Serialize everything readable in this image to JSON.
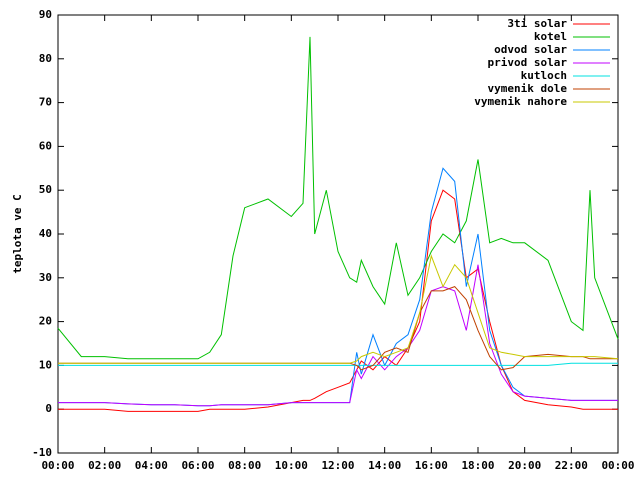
{
  "chart_data": {
    "type": "line",
    "ylabel": "teplota ve C",
    "x": [
      0,
      1,
      2,
      3,
      4,
      5,
      6,
      6.5,
      7,
      7.5,
      8,
      9,
      10,
      10.5,
      10.8,
      11,
      11.5,
      12,
      12.5,
      12.8,
      13,
      13.5,
      14,
      14.5,
      15,
      15.5,
      16,
      16.5,
      17,
      17.5,
      18,
      18.5,
      19,
      19.5,
      20,
      21,
      22,
      22.5,
      22.8,
      23,
      24
    ],
    "xlim": [
      0,
      24
    ],
    "xticks": [
      {
        "value": 0,
        "label": "00:00"
      },
      {
        "value": 2,
        "label": "02:00"
      },
      {
        "value": 4,
        "label": "04:00"
      },
      {
        "value": 6,
        "label": "06:00"
      },
      {
        "value": 8,
        "label": "08:00"
      },
      {
        "value": 10,
        "label": "10:00"
      },
      {
        "value": 12,
        "label": "12:00"
      },
      {
        "value": 14,
        "label": "14:00"
      },
      {
        "value": 16,
        "label": "16:00"
      },
      {
        "value": 18,
        "label": "18:00"
      },
      {
        "value": 20,
        "label": "20:00"
      },
      {
        "value": 22,
        "label": "22:00"
      },
      {
        "value": 24,
        "label": "00:00"
      }
    ],
    "ylim": [
      -10,
      90
    ],
    "yticks": [
      -10,
      0,
      10,
      20,
      30,
      40,
      50,
      60,
      70,
      80,
      90
    ],
    "grid": false,
    "legend": "top-right",
    "series": [
      {
        "name": "3ti solar",
        "color": "#ff0000",
        "values": [
          0,
          0,
          0,
          -0.5,
          -0.5,
          -0.5,
          -0.5,
          0,
          0,
          0,
          0,
          0.5,
          1.5,
          2,
          2,
          2.5,
          4,
          5,
          6,
          9,
          11,
          9,
          12,
          10,
          14,
          20,
          43,
          50,
          48,
          30,
          32,
          20,
          10,
          4,
          2,
          1,
          0.5,
          0,
          0,
          0,
          0
        ]
      },
      {
        "name": "kotel",
        "color": "#00c000",
        "values": [
          18.5,
          12,
          12,
          11.5,
          11.5,
          11.5,
          11.5,
          13,
          17,
          35,
          46,
          48,
          44,
          47,
          85,
          40,
          50,
          36,
          30,
          29,
          34,
          28,
          24,
          38,
          26,
          30,
          36,
          40,
          38,
          43,
          57,
          38,
          39,
          38,
          38,
          34,
          20,
          18,
          50,
          30,
          16
        ]
      },
      {
        "name": "odvod solar",
        "color": "#0080ff",
        "values": [
          1.5,
          1.5,
          1.5,
          1.2,
          1,
          1,
          0.8,
          0.8,
          1,
          1,
          1,
          1,
          1.5,
          1.5,
          1.5,
          1.5,
          1.5,
          1.5,
          1.5,
          13,
          8,
          17,
          10,
          15,
          17,
          25,
          45,
          55,
          52,
          28,
          40,
          18,
          10,
          5,
          3,
          2.5,
          2,
          2,
          2,
          2,
          2
        ]
      },
      {
        "name": "privod solar",
        "color": "#c000ff",
        "values": [
          1.5,
          1.5,
          1.5,
          1.2,
          1,
          1,
          0.8,
          0.8,
          1,
          1,
          1,
          1,
          1.5,
          1.5,
          1.5,
          1.5,
          1.5,
          1.5,
          1.5,
          9,
          7,
          12,
          9,
          12,
          14,
          18,
          27,
          28,
          27,
          18,
          33,
          15,
          8,
          4,
          3,
          2.5,
          2,
          2,
          2,
          2,
          2
        ]
      },
      {
        "name": "kutloch",
        "color": "#00e0e0",
        "values": [
          10,
          10,
          10,
          10,
          10,
          10,
          10,
          10,
          10,
          10,
          10,
          10,
          10,
          10,
          10,
          10,
          10,
          10,
          10,
          10,
          10,
          10,
          10,
          10,
          10,
          10,
          10,
          10,
          10,
          10,
          10,
          10,
          10,
          10,
          10,
          10,
          10.5,
          10.5,
          10.5,
          10.5,
          10.5
        ]
      },
      {
        "name": "vymenik dole",
        "color": "#c04000",
        "values": [
          10.5,
          10.5,
          10.5,
          10.5,
          10.5,
          10.5,
          10.5,
          10.5,
          10.5,
          10.5,
          10.5,
          10.5,
          10.5,
          10.5,
          10.5,
          10.5,
          10.5,
          10.5,
          10.5,
          10,
          9,
          10,
          13,
          14,
          13,
          22,
          27,
          27,
          28,
          25,
          18,
          12,
          9,
          9.5,
          12,
          12.5,
          12,
          12,
          11.5,
          11.5,
          11.5
        ]
      },
      {
        "name": "vymenik nahore",
        "color": "#c8c800",
        "values": [
          10.5,
          10.5,
          10.5,
          10.5,
          10.5,
          10.5,
          10.5,
          10.5,
          10.5,
          10.5,
          10.5,
          10.5,
          10.5,
          10.5,
          10.5,
          10.5,
          10.5,
          10.5,
          10.5,
          11,
          12,
          13,
          12,
          13,
          14,
          22,
          35,
          28,
          33,
          30,
          22,
          14,
          13,
          12.5,
          12,
          12,
          12,
          12,
          12,
          12,
          11.5
        ]
      }
    ]
  }
}
